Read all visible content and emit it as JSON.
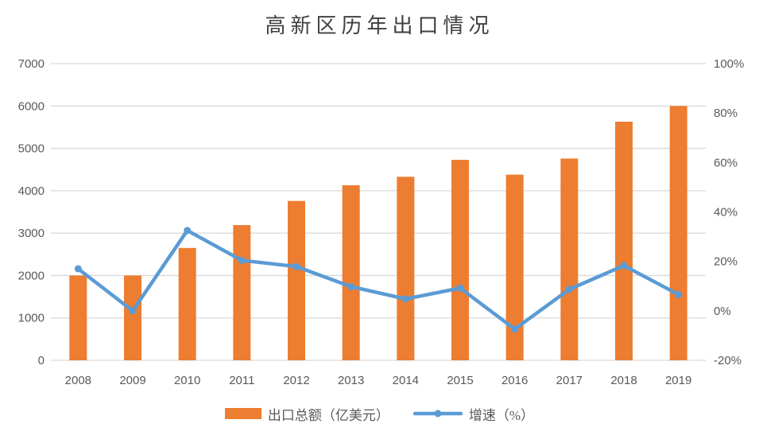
{
  "chart_data": {
    "type": "bar+line",
    "title": "高新区历年出口情况",
    "categories": [
      "2008",
      "2009",
      "2010",
      "2011",
      "2012",
      "2013",
      "2014",
      "2015",
      "2016",
      "2017",
      "2018",
      "2019"
    ],
    "series": [
      {
        "name": "出口总额（亿美元）",
        "type": "bar",
        "axis": "left",
        "color": "#ED7D31",
        "values": [
          2000,
          2000,
          2650,
          3190,
          3760,
          4130,
          4330,
          4730,
          4380,
          4760,
          5630,
          6000
        ]
      },
      {
        "name": "增速（%）",
        "type": "line",
        "axis": "right",
        "color": "#5B9BD5",
        "values": [
          17.0,
          0.0,
          32.5,
          20.4,
          17.9,
          9.8,
          4.8,
          9.2,
          -7.4,
          8.7,
          18.3,
          6.6
        ]
      }
    ],
    "left_axis": {
      "min": 0,
      "max": 7000,
      "step": 1000,
      "tick_labels": [
        "0",
        "1000",
        "2000",
        "3000",
        "4000",
        "5000",
        "6000",
        "7000"
      ]
    },
    "right_axis": {
      "min": -20,
      "max": 100,
      "step": 20,
      "tick_labels": [
        "-20%",
        "0%",
        "20%",
        "40%",
        "60%",
        "80%",
        "100%"
      ]
    },
    "grid": "horizontal",
    "legend_position": "bottom",
    "colors": {
      "bar": "#ED7D31",
      "line": "#5B9BD5",
      "gridline": "#D9D9D9",
      "axis_text": "#595959",
      "title_text": "#3F3F3F",
      "background": "#FFFFFF"
    }
  }
}
